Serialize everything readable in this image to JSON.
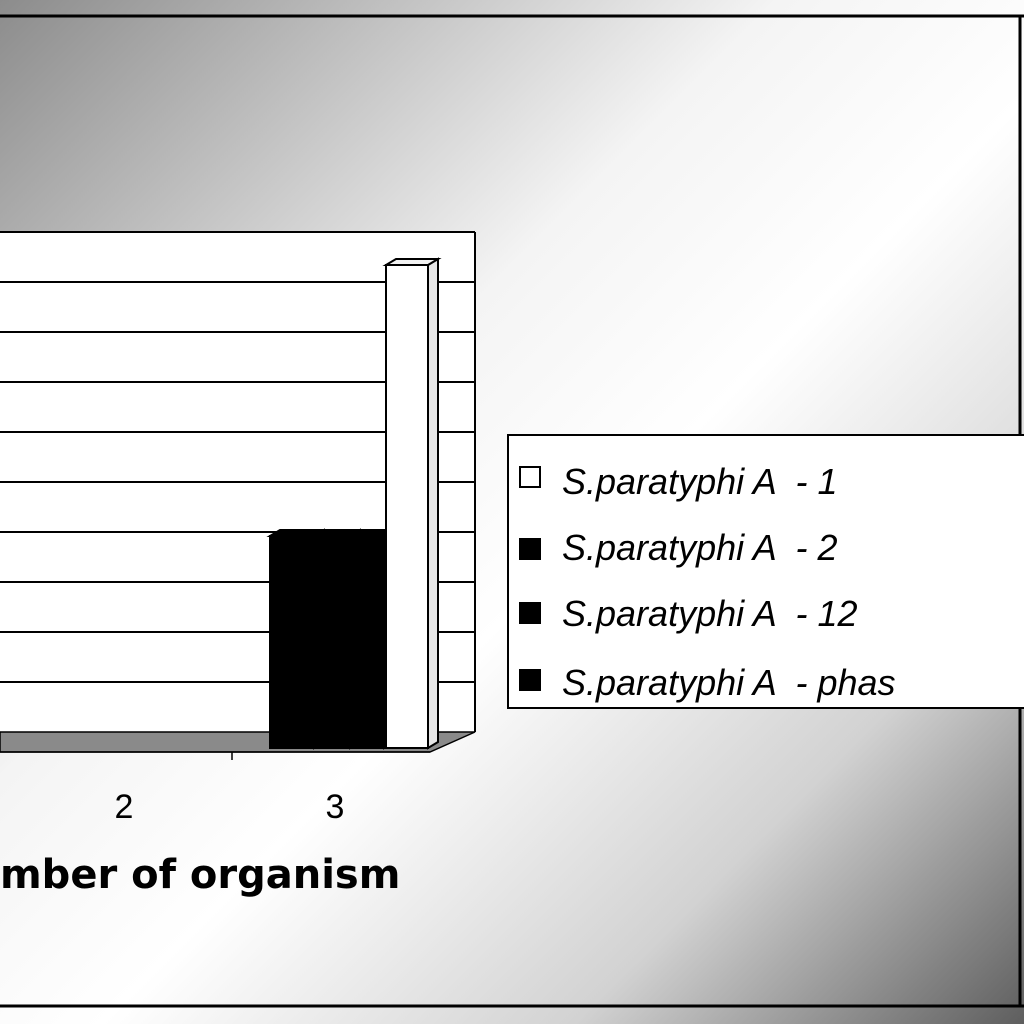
{
  "chart_data": {
    "type": "bar",
    "style": "3d-clustered",
    "xlabel": "mber of organism",
    "categories": [
      "2",
      "3"
    ],
    "ylim": [
      0,
      10
    ],
    "grid": true,
    "legend_position": "right",
    "series": [
      {
        "name": "S.paratyphi A  - 1",
        "color": "#ffffff",
        "values": [
          0,
          9.5
        ]
      },
      {
        "name": "S.paratyphi A  - 2",
        "color": "#000000",
        "values": [
          0,
          4
        ]
      },
      {
        "name": "S.paratyphi A  - 12",
        "color": "#000000",
        "values": [
          0,
          4
        ]
      },
      {
        "name": "S.paratyphi A  - phas",
        "color": "#000000",
        "values": [
          0,
          4
        ]
      }
    ],
    "colors": {
      "background_light": "#ffffff",
      "background_dark": "#6a6a6a",
      "gridline": "#000000",
      "floor": "#8a8a8a"
    }
  }
}
